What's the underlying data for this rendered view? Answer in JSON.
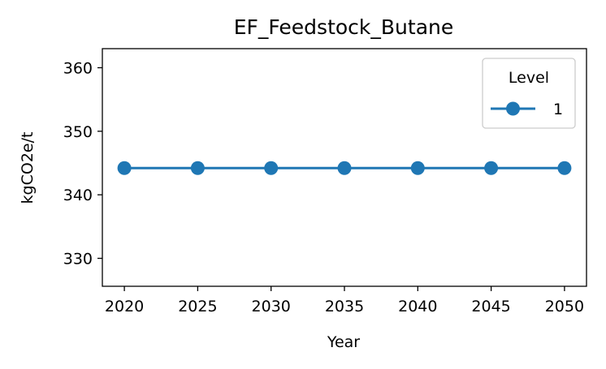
{
  "chart_data": {
    "type": "line",
    "title": "EF_Feedstock_Butane",
    "xlabel": "Year",
    "ylabel": "kgCO2e/t",
    "x": [
      2020,
      2025,
      2030,
      2035,
      2040,
      2045,
      2050
    ],
    "xticks": [
      2020,
      2025,
      2030,
      2035,
      2040,
      2045,
      2050
    ],
    "xlim": [
      2018.5,
      2051.5
    ],
    "yticks": [
      330,
      340,
      350,
      360
    ],
    "ylim": [
      325.6,
      363.0
    ],
    "series": [
      {
        "name": "1",
        "values": [
          344.2,
          344.2,
          344.2,
          344.2,
          344.2,
          344.2,
          344.2
        ],
        "color": "#1f77b4",
        "marker": "circle"
      }
    ],
    "legend": {
      "title": "Level",
      "position": "top-right"
    },
    "grid": false
  }
}
